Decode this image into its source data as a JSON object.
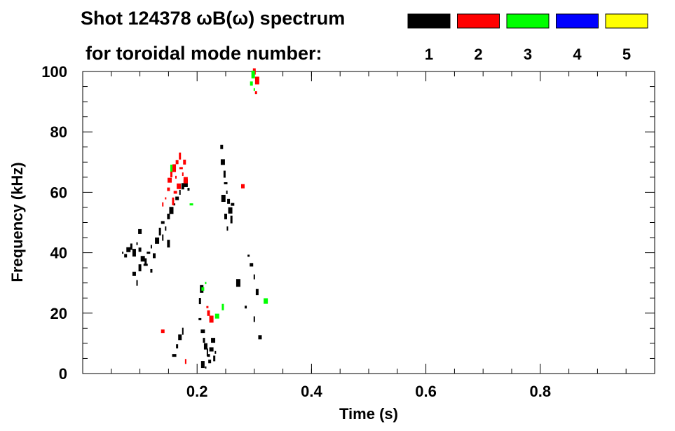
{
  "chart_data": {
    "type": "heatmap",
    "title_line1": "Shot 124378 ωB(ω) spectrum",
    "title_line2": "for toroidal mode number:",
    "xlabel": "Time (s)",
    "ylabel": "Frequency (kHz)",
    "xlim": [
      0.0,
      1.0
    ],
    "ylim": [
      0,
      100
    ],
    "xticks": [
      {
        "value": 0.2,
        "label": "0.2"
      },
      {
        "value": 0.4,
        "label": "0.4"
      },
      {
        "value": 0.6,
        "label": "0.6"
      },
      {
        "value": 0.8,
        "label": "0.8"
      }
    ],
    "yticks": [
      {
        "value": 0,
        "label": "0"
      },
      {
        "value": 20,
        "label": "20"
      },
      {
        "value": 40,
        "label": "40"
      },
      {
        "value": 60,
        "label": "60"
      },
      {
        "value": 80,
        "label": "80"
      },
      {
        "value": 100,
        "label": "100"
      }
    ],
    "legend": [
      {
        "mode": "1",
        "color": "#000000"
      },
      {
        "mode": "2",
        "color": "#ff0000"
      },
      {
        "mode": "3",
        "color": "#00ff00"
      },
      {
        "mode": "4",
        "color": "#0000ff"
      },
      {
        "mode": "5",
        "color": "#ffff00"
      }
    ],
    "series": [
      {
        "mode": "1",
        "color": "#000000",
        "points": [
          [
            0.07,
            40
          ],
          [
            0.075,
            39
          ],
          [
            0.08,
            41
          ],
          [
            0.085,
            42
          ],
          [
            0.09,
            40
          ],
          [
            0.095,
            43
          ],
          [
            0.1,
            41
          ],
          [
            0.105,
            38
          ],
          [
            0.11,
            37
          ],
          [
            0.115,
            40
          ],
          [
            0.12,
            42
          ],
          [
            0.125,
            39
          ],
          [
            0.13,
            44
          ],
          [
            0.135,
            47
          ],
          [
            0.14,
            50
          ],
          [
            0.145,
            48
          ],
          [
            0.15,
            52
          ],
          [
            0.155,
            54
          ],
          [
            0.16,
            56
          ],
          [
            0.165,
            58
          ],
          [
            0.17,
            60
          ],
          [
            0.175,
            62
          ],
          [
            0.18,
            63
          ],
          [
            0.185,
            61
          ],
          [
            0.09,
            33
          ],
          [
            0.095,
            30
          ],
          [
            0.1,
            35
          ],
          [
            0.11,
            36
          ],
          [
            0.12,
            34
          ],
          [
            0.1,
            47
          ],
          [
            0.14,
            45
          ],
          [
            0.15,
            43
          ],
          [
            0.16,
            6
          ],
          [
            0.165,
            9
          ],
          [
            0.17,
            12
          ],
          [
            0.175,
            14
          ],
          [
            0.205,
            18
          ],
          [
            0.21,
            14
          ],
          [
            0.212,
            11
          ],
          [
            0.215,
            9
          ],
          [
            0.218,
            7
          ],
          [
            0.22,
            6
          ],
          [
            0.225,
            8
          ],
          [
            0.23,
            5
          ],
          [
            0.21,
            3
          ],
          [
            0.215,
            2
          ],
          [
            0.222,
            4
          ],
          [
            0.228,
            11
          ],
          [
            0.205,
            24
          ],
          [
            0.208,
            28
          ],
          [
            0.232,
            7
          ],
          [
            0.243,
            75
          ],
          [
            0.245,
            70
          ],
          [
            0.248,
            66
          ],
          [
            0.25,
            63
          ],
          [
            0.252,
            60
          ],
          [
            0.255,
            57
          ],
          [
            0.258,
            54
          ],
          [
            0.26,
            51
          ],
          [
            0.262,
            56
          ],
          [
            0.253,
            48
          ],
          [
            0.25,
            52
          ],
          [
            0.246,
            58
          ],
          [
            0.29,
            39
          ],
          [
            0.295,
            36
          ],
          [
            0.3,
            32
          ],
          [
            0.305,
            27
          ],
          [
            0.272,
            30
          ],
          [
            0.285,
            22
          ],
          [
            0.31,
            12
          ],
          [
            0.3,
            18
          ]
        ]
      },
      {
        "mode": "2",
        "color": "#ff0000",
        "points": [
          [
            0.145,
            58
          ],
          [
            0.15,
            61
          ],
          [
            0.152,
            64
          ],
          [
            0.155,
            66
          ],
          [
            0.16,
            68
          ],
          [
            0.163,
            65
          ],
          [
            0.165,
            70
          ],
          [
            0.168,
            62
          ],
          [
            0.17,
            72
          ],
          [
            0.172,
            68
          ],
          [
            0.175,
            66
          ],
          [
            0.178,
            70
          ],
          [
            0.18,
            64
          ],
          [
            0.158,
            57
          ],
          [
            0.162,
            60
          ],
          [
            0.14,
            56
          ],
          [
            0.22,
            20
          ],
          [
            0.225,
            18
          ],
          [
            0.218,
            22
          ],
          [
            0.14,
            14
          ],
          [
            0.18,
            4
          ],
          [
            0.3,
            100
          ],
          [
            0.305,
            97
          ],
          [
            0.303,
            93
          ],
          [
            0.28,
            62
          ]
        ]
      },
      {
        "mode": "3",
        "color": "#00ff00",
        "points": [
          [
            0.215,
            30
          ],
          [
            0.21,
            28
          ],
          [
            0.235,
            19
          ],
          [
            0.245,
            22
          ],
          [
            0.298,
            99
          ],
          [
            0.3,
            94
          ],
          [
            0.295,
            96
          ],
          [
            0.32,
            24
          ],
          [
            0.155,
            68
          ],
          [
            0.19,
            56
          ]
        ]
      }
    ]
  }
}
